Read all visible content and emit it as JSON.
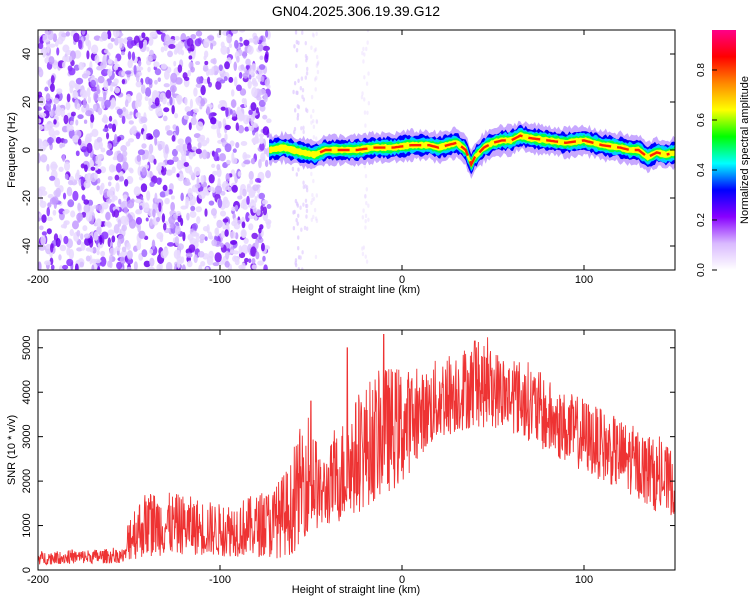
{
  "title": "GN04.2025.306.19.39.G12",
  "chart_data": [
    {
      "type": "heatmap",
      "title": "",
      "xlabel": "Height of straight line (km)",
      "ylabel": "Frequency (Hz)",
      "xlim": [
        -200,
        150
      ],
      "ylim": [
        -50,
        50
      ],
      "xticks": [
        -200,
        -100,
        0,
        100
      ],
      "yticks": [
        -40,
        -20,
        0,
        20,
        40
      ],
      "colorbar": {
        "label": "Normalized spectral amplitude",
        "range": [
          0,
          0.96
        ],
        "ticks": [
          0.0,
          0.2,
          0.4,
          0.6,
          0.8
        ],
        "colormap": [
          "#ffffff",
          "#d9b9ff",
          "#8800ff",
          "#0000ff",
          "#00ffff",
          "#00ff00",
          "#ffff00",
          "#ff8800",
          "#ff0000",
          "#ff0088"
        ]
      },
      "noise_region_x": [
        -200,
        -73
      ],
      "ridge": {
        "name": "",
        "x": [
          -73,
          -65,
          -55,
          -48,
          -42,
          -35,
          -25,
          -15,
          -5,
          5,
          15,
          20,
          25,
          30,
          35,
          38,
          40,
          45,
          50,
          55,
          60,
          65,
          70,
          80,
          90,
          100,
          110,
          120,
          125,
          130,
          135,
          140,
          145,
          150
        ],
        "y": [
          0,
          1,
          -1,
          -2,
          0,
          0,
          0,
          1,
          1,
          2,
          2,
          1,
          2,
          3,
          0,
          -6,
          -3,
          1,
          3,
          4,
          4,
          6,
          5,
          4,
          3,
          4,
          2,
          1,
          0,
          0,
          -3,
          -1,
          -2,
          -1
        ]
      }
    },
    {
      "type": "line",
      "title": "",
      "xlabel": "Height of straight line (km)",
      "ylabel": "SNR (10 * v/v)",
      "xlim": [
        -200,
        150
      ],
      "ylim": [
        0,
        5400
      ],
      "xticks": [
        -200,
        -100,
        0,
        100
      ],
      "yticks": [
        0,
        1000,
        2000,
        3000,
        4000,
        5000
      ],
      "series": [
        {
          "name": "",
          "color": "#ee3333",
          "x": [
            -200,
            -180,
            -160,
            -152,
            -150,
            -140,
            -120,
            -100,
            -80,
            -70,
            -60,
            -55,
            -50,
            -45,
            -40,
            -30,
            -20,
            -10,
            0,
            10,
            20,
            30,
            40,
            50,
            60,
            70,
            80,
            90,
            100,
            110,
            120,
            130,
            140,
            150
          ],
          "y_low": [
            120,
            140,
            150,
            160,
            200,
            300,
            350,
            300,
            300,
            250,
            350,
            700,
            900,
            900,
            1000,
            1100,
            1400,
            1700,
            1900,
            2600,
            2900,
            3100,
            3200,
            3200,
            3100,
            2900,
            2600,
            2400,
            2200,
            2000,
            1800,
            1600,
            1300,
            1200
          ],
          "y_high": [
            420,
            450,
            480,
            500,
            1400,
            1800,
            1700,
            1500,
            1700,
            1900,
            2500,
            3400,
            3700,
            2500,
            2800,
            3600,
            4200,
            4600,
            4600,
            4400,
            4800,
            5000,
            5100,
            5000,
            4800,
            4700,
            4300,
            4000,
            3900,
            3600,
            3400,
            3200,
            2900,
            2700
          ],
          "spikes": [
            [
              -50,
              3800
            ],
            [
              -30,
              5000
            ],
            [
              -10,
              5300
            ],
            [
              40,
              5150
            ]
          ]
        }
      ]
    }
  ]
}
